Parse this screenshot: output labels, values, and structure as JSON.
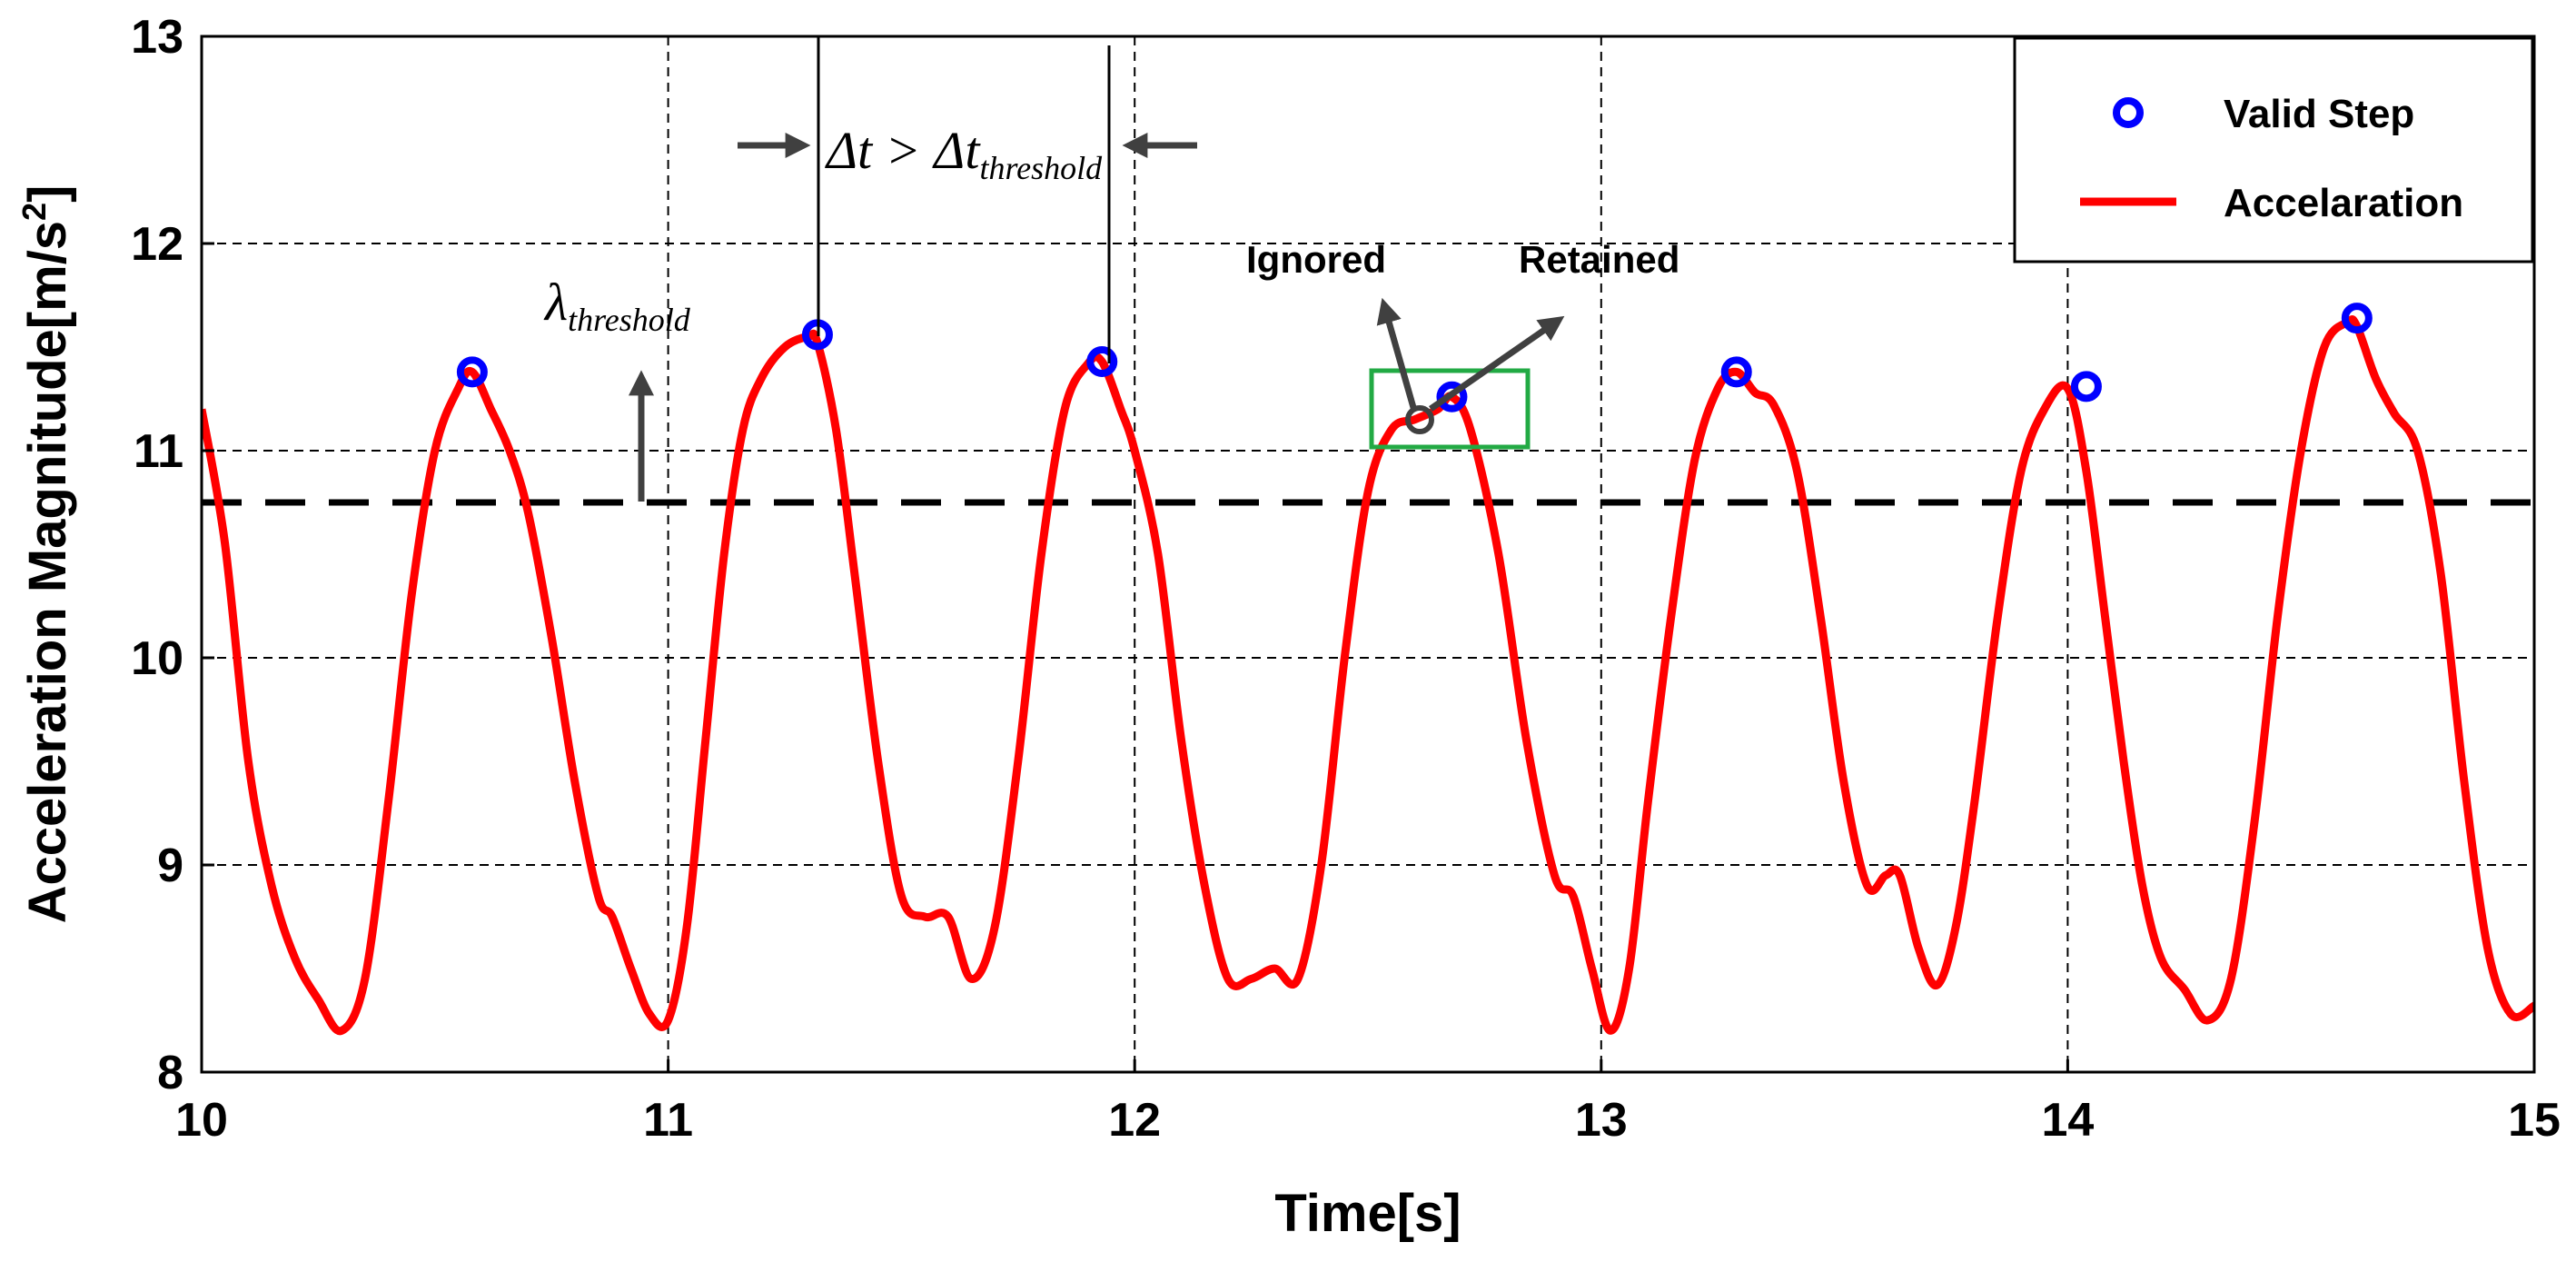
{
  "chart_data": {
    "type": "line",
    "title": "",
    "xlabel": "Time[s]",
    "ylabel": "Acceleration Magnitude[m/s",
    "ylabel_sup": "2",
    "ylabel_close": "]",
    "xlim": [
      10,
      15
    ],
    "ylim": [
      8,
      13
    ],
    "xticks": [
      10,
      11,
      12,
      13,
      14,
      15
    ],
    "yticks": [
      8,
      9,
      10,
      11,
      12,
      13
    ],
    "grid": true,
    "legend_position": "top-right",
    "threshold": 10.75,
    "colors": {
      "line": "#ff0000",
      "marker": "#0000ff",
      "threshold": "#000000",
      "box": "#22aa44",
      "arrow": "#404040"
    },
    "series": [
      {
        "name": "Accelaration",
        "x": [
          10.0,
          10.05,
          10.1,
          10.15,
          10.2,
          10.25,
          10.3,
          10.35,
          10.4,
          10.45,
          10.5,
          10.55,
          10.58,
          10.62,
          10.66,
          10.7,
          10.75,
          10.8,
          10.85,
          10.88,
          10.92,
          10.96,
          11.0,
          11.04,
          11.08,
          11.12,
          11.16,
          11.2,
          11.25,
          11.3,
          11.32,
          11.36,
          11.4,
          11.45,
          11.5,
          11.55,
          11.6,
          11.65,
          11.7,
          11.75,
          11.8,
          11.85,
          11.9,
          11.93,
          11.97,
          12.0,
          12.05,
          12.1,
          12.15,
          12.2,
          12.25,
          12.3,
          12.35,
          12.4,
          12.45,
          12.5,
          12.55,
          12.6,
          12.65,
          12.68,
          12.72,
          12.78,
          12.84,
          12.9,
          12.94,
          12.98,
          13.02,
          13.06,
          13.1,
          13.15,
          13.2,
          13.25,
          13.29,
          13.33,
          13.37,
          13.42,
          13.47,
          13.52,
          13.57,
          13.61,
          13.64,
          13.68,
          13.72,
          13.76,
          13.8,
          13.85,
          13.9,
          13.95,
          14.0,
          14.04,
          14.08,
          14.12,
          14.16,
          14.2,
          14.25,
          14.3,
          14.35,
          14.4,
          14.45,
          14.5,
          14.55,
          14.6,
          14.62,
          14.66,
          14.7,
          14.75,
          14.8,
          14.85,
          14.9,
          14.95,
          15.0
        ],
        "y": [
          11.2,
          10.55,
          9.5,
          8.9,
          8.55,
          8.35,
          8.2,
          8.45,
          9.3,
          10.3,
          11.0,
          11.3,
          11.38,
          11.2,
          11.0,
          10.7,
          10.1,
          9.4,
          8.85,
          8.75,
          8.5,
          8.28,
          8.25,
          8.7,
          9.6,
          10.5,
          11.1,
          11.35,
          11.5,
          11.55,
          11.52,
          11.1,
          10.4,
          9.5,
          8.85,
          8.75,
          8.75,
          8.45,
          8.7,
          9.5,
          10.5,
          11.2,
          11.42,
          11.43,
          11.2,
          11.0,
          10.5,
          9.6,
          8.9,
          8.45,
          8.45,
          8.5,
          8.45,
          9.0,
          10.0,
          10.8,
          11.1,
          11.15,
          11.2,
          11.26,
          11.1,
          10.5,
          9.6,
          8.95,
          8.85,
          8.5,
          8.2,
          8.5,
          9.3,
          10.2,
          10.95,
          11.3,
          11.38,
          11.28,
          11.22,
          10.9,
          10.2,
          9.4,
          8.9,
          8.95,
          8.95,
          8.6,
          8.42,
          8.7,
          9.3,
          10.2,
          10.9,
          11.2,
          11.3,
          10.9,
          10.2,
          9.5,
          8.9,
          8.55,
          8.4,
          8.25,
          8.45,
          9.2,
          10.2,
          11.0,
          11.5,
          11.62,
          11.6,
          11.35,
          11.18,
          11.0,
          10.4,
          9.4,
          8.6,
          8.28,
          8.32
        ]
      },
      {
        "name": "Valid Step",
        "x": [
          10.58,
          11.32,
          11.93,
          12.68,
          13.29,
          14.04,
          14.62
        ],
        "y": [
          11.38,
          11.56,
          11.43,
          11.26,
          11.38,
          11.31,
          11.64
        ]
      }
    ],
    "legend": [
      "Valid Step",
      "Accelaration"
    ],
    "annotations": {
      "lambda_main": "λ",
      "lambda_sub": "threshold",
      "dt_main": "Δt > Δt",
      "dt_sub": "threshold",
      "ignored": "Ignored",
      "retained": "Retained"
    }
  }
}
